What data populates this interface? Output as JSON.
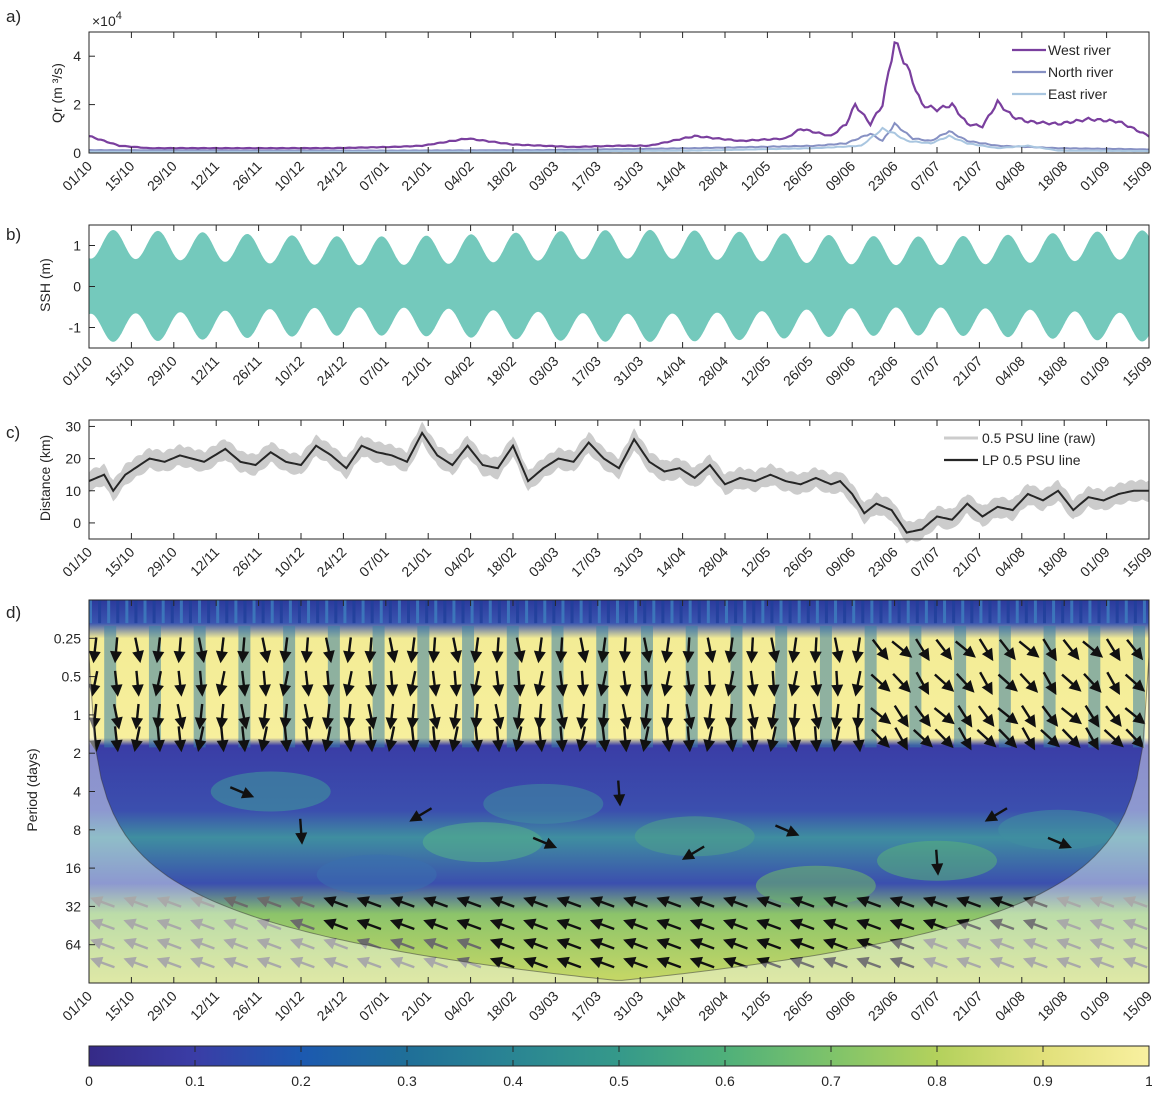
{
  "panel_labels": [
    "a)",
    "b)",
    "c)",
    "d)"
  ],
  "dates": [
    "01/10",
    "15/10",
    "29/10",
    "12/11",
    "26/11",
    "10/12",
    "24/12",
    "07/01",
    "21/01",
    "04/02",
    "18/02",
    "03/03",
    "17/03",
    "31/03",
    "14/04",
    "28/04",
    "12/05",
    "26/05",
    "09/06",
    "23/06",
    "07/07",
    "21/07",
    "04/08",
    "18/08",
    "01/09",
    "15/09"
  ],
  "colors": {
    "west": "#7a3f9e",
    "north": "#8690c3",
    "east": "#a9c6e0",
    "ssh": "#74c9bc",
    "psu_raw": "#cccccc",
    "psu_lp": "#262626"
  },
  "chart_data": [
    {
      "panel": "a)",
      "type": "line",
      "ylabel": "Qr (m ³/s)",
      "multiplier": "×10",
      "multiplier_exp": "4",
      "ylim": [
        0,
        5
      ],
      "yticks": [
        0,
        2,
        4
      ],
      "legend_position": "top-right",
      "series": [
        {
          "name": "West river",
          "x_day": [
            0,
            10,
            20,
            40,
            60,
            80,
            100,
            110,
            125,
            140,
            160,
            175,
            185,
            200,
            215,
            230,
            235,
            245,
            250,
            253,
            258,
            262,
            266,
            270,
            275,
            280,
            285,
            290,
            295,
            300,
            305,
            310,
            320,
            330,
            340,
            350
          ],
          "values": [
            0.7,
            0.3,
            0.2,
            0.2,
            0.2,
            0.2,
            0.25,
            0.3,
            0.6,
            0.35,
            0.25,
            0.3,
            0.3,
            0.7,
            0.5,
            0.6,
            1.0,
            0.7,
            1.2,
            2.0,
            1.2,
            2.0,
            4.6,
            3.6,
            2.0,
            1.8,
            2.0,
            1.2,
            1.1,
            2.1,
            1.5,
            1.3,
            1.2,
            1.4,
            1.3,
            0.7
          ]
        },
        {
          "name": "North river",
          "x_day": [
            0,
            50,
            100,
            150,
            200,
            240,
            250,
            258,
            262,
            266,
            272,
            278,
            284,
            290,
            300,
            320,
            350
          ],
          "values": [
            0.12,
            0.1,
            0.1,
            0.12,
            0.2,
            0.3,
            0.4,
            0.8,
            0.5,
            1.2,
            0.6,
            0.5,
            0.9,
            0.5,
            0.3,
            0.2,
            0.15
          ]
        },
        {
          "name": "East river",
          "x_day": [
            0,
            50,
            100,
            150,
            200,
            240,
            255,
            262,
            266,
            270,
            278,
            284,
            290,
            300,
            310,
            320,
            350
          ],
          "values": [
            0.05,
            0.05,
            0.05,
            0.06,
            0.1,
            0.2,
            0.3,
            1.0,
            0.8,
            0.5,
            0.4,
            0.7,
            0.4,
            0.2,
            0.3,
            0.1,
            0.08
          ]
        }
      ]
    },
    {
      "panel": "b)",
      "type": "area",
      "ylabel": "SSH (m)",
      "ylim": [
        -1.5,
        1.5
      ],
      "yticks": [
        -1,
        0,
        1
      ],
      "description_values": {
        "spring_neap_period_days": 14.77,
        "spring_amplitude_m": 1.3,
        "neap_amplitude_m": 0.6
      }
    },
    {
      "panel": "c)",
      "type": "line",
      "ylabel": "Distance (km)",
      "ylim": [
        -5,
        32
      ],
      "yticks": [
        0,
        10,
        20,
        30
      ],
      "legend_position": "top-right",
      "series": [
        {
          "name": "0.5 PSU line (raw)",
          "band_halfwidth_km": 3.5
        },
        {
          "name": "LP 0.5 PSU line",
          "x_day": [
            0,
            5,
            8,
            12,
            20,
            25,
            30,
            38,
            45,
            50,
            55,
            60,
            65,
            70,
            75,
            80,
            85,
            90,
            95,
            100,
            105,
            110,
            115,
            120,
            125,
            130,
            135,
            140,
            145,
            150,
            155,
            160,
            165,
            170,
            175,
            180,
            185,
            190,
            195,
            200,
            205,
            210,
            215,
            220,
            225,
            230,
            235,
            240,
            245,
            248,
            252,
            256,
            260,
            265,
            270,
            275,
            280,
            285,
            290,
            295,
            300,
            305,
            310,
            315,
            320,
            325,
            330,
            335,
            340,
            345,
            350
          ],
          "values": [
            13,
            15,
            10,
            15,
            20,
            19,
            21,
            19,
            23,
            19,
            18,
            22,
            19,
            18,
            24,
            21,
            17,
            24,
            22,
            21,
            19,
            28,
            21,
            18,
            24,
            18,
            17,
            24,
            13,
            17,
            20,
            19,
            25,
            20,
            17,
            26,
            19,
            16,
            17,
            14,
            18,
            12,
            14,
            13,
            15,
            13,
            12,
            14,
            12,
            13,
            9,
            3,
            6,
            4,
            -3,
            -2,
            2,
            1,
            6,
            2,
            5,
            4,
            9,
            7,
            10,
            4,
            8,
            7,
            9,
            10,
            10
          ]
        }
      ]
    },
    {
      "panel": "d)",
      "type": "heatmap",
      "ylabel": "Period (days)",
      "yticks": [
        "0.25",
        "0.5",
        "1",
        "2",
        "4",
        "8",
        "16",
        "32",
        "64"
      ],
      "colorbar_ticks": [
        "0",
        "0.1",
        "0.2",
        "0.3",
        "0.4",
        "0.5",
        "0.6",
        "0.7",
        "0.8",
        "0.9",
        "1"
      ],
      "colorbar_range": [
        0,
        1
      ],
      "high_coherence_bands": [
        {
          "period_min": 0.2,
          "period_max": 1.8
        },
        {
          "period_min": 32,
          "period_max": 120
        }
      ]
    }
  ]
}
